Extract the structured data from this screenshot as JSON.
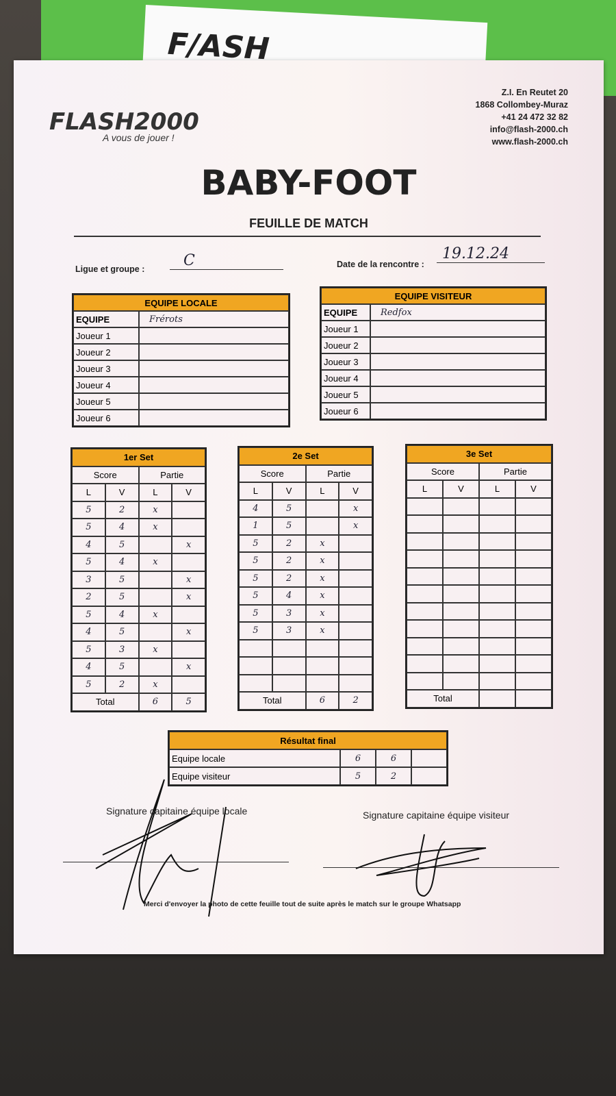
{
  "header": {
    "logo": "FLASH2000",
    "tagline": "A vous de jouer !",
    "address": [
      "Z.I. En Reutet 20",
      "1868 Collombey-Muraz",
      "+41 24 472 32 82",
      "info@flash-2000.ch",
      "www.flash-2000.ch"
    ]
  },
  "title": "BABY-FOOT",
  "subtitle": "FEUILLE DE MATCH",
  "fields": {
    "league_label": "Ligue et groupe :",
    "league_value": "C",
    "date_label": "Date de la rencontre :",
    "date_value": "19.12.24"
  },
  "teams": [
    {
      "title": "EQUIPE LOCALE",
      "team_label": "EQUIPE",
      "team_name": "Frérots",
      "players": [
        "Joueur 1",
        "Joueur 2",
        "Joueur 3",
        "Joueur 4",
        "Joueur 5",
        "Joueur 6"
      ]
    },
    {
      "title": "EQUIPE VISITEUR",
      "team_label": "EQUIPE",
      "team_name": "Redfox",
      "players": [
        "Joueur 1",
        "Joueur 2",
        "Joueur 3",
        "Joueur 4",
        "Joueur 5",
        "Joueur 6"
      ]
    }
  ],
  "sets": [
    {
      "title": "1er Set",
      "score": "Score",
      "partie": "Partie",
      "cols": [
        "L",
        "V",
        "L",
        "V"
      ],
      "total_label": "Total",
      "totals": [
        6,
        5
      ],
      "rows": [
        [
          5,
          2,
          "x",
          null
        ],
        [
          5,
          4,
          "x",
          null
        ],
        [
          4,
          5,
          null,
          "x"
        ],
        [
          5,
          4,
          "x",
          null
        ],
        [
          3,
          5,
          null,
          "x"
        ],
        [
          2,
          5,
          null,
          "x"
        ],
        [
          5,
          4,
          "x",
          null
        ],
        [
          4,
          5,
          null,
          "x"
        ],
        [
          5,
          3,
          "x",
          null
        ],
        [
          4,
          5,
          null,
          "x"
        ],
        [
          5,
          2,
          "x",
          null
        ]
      ]
    },
    {
      "title": "2e Set",
      "score": "Score",
      "partie": "Partie",
      "cols": [
        "L",
        "V",
        "L",
        "V"
      ],
      "total_label": "Total",
      "totals": [
        6,
        2
      ],
      "rows": [
        [
          4,
          5,
          null,
          "x"
        ],
        [
          1,
          5,
          null,
          "x"
        ],
        [
          5,
          2,
          "x",
          null
        ],
        [
          5,
          2,
          "x",
          null
        ],
        [
          5,
          2,
          "x",
          null
        ],
        [
          5,
          4,
          "x",
          null
        ],
        [
          5,
          3,
          "x",
          null
        ],
        [
          5,
          3,
          "x",
          null
        ]
      ]
    },
    {
      "title": "3e Set",
      "score": "Score",
      "partie": "Partie",
      "cols": [
        "L",
        "V",
        "L",
        "V"
      ],
      "total_label": "Total",
      "rows": []
    }
  ],
  "final": {
    "title": "Résultat final",
    "rows": [
      {
        "label": "Equipe locale",
        "values": [
          6,
          6
        ]
      },
      {
        "label": "Equipe visiteur",
        "values": [
          5,
          2
        ]
      }
    ]
  },
  "signatures": [
    "Signature capitaine équipe locale",
    "Signature capitaine équipe visiteur"
  ],
  "footer": "Merci d'envoyer la photo de cette feuille tout de suite après le match sur le groupe Whatsapp"
}
